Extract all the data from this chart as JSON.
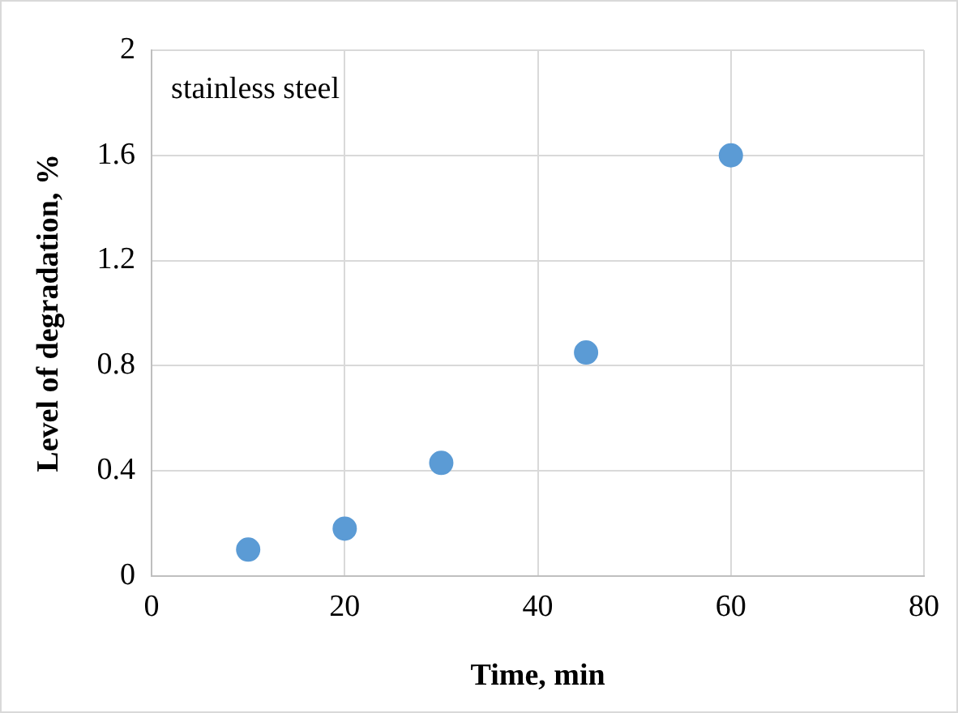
{
  "chart_data": {
    "type": "scatter",
    "xlabel": "Time, min",
    "ylabel": "Level of degradation, %",
    "annotations": [
      "stainless steel"
    ],
    "x": [
      10,
      20,
      30,
      45,
      60
    ],
    "series": [
      {
        "color": "#5b9bd5",
        "values": [
          0.1,
          0.18,
          0.43,
          0.85,
          1.6
        ]
      }
    ],
    "xlim": [
      0,
      80
    ],
    "xticks": [
      0,
      20,
      40,
      60,
      80
    ],
    "ylim": [
      0,
      2
    ],
    "yticks": [
      0,
      0.4,
      0.8,
      1.2,
      1.6,
      2
    ],
    "grid": true,
    "legend": false,
    "marker": "circle"
  }
}
